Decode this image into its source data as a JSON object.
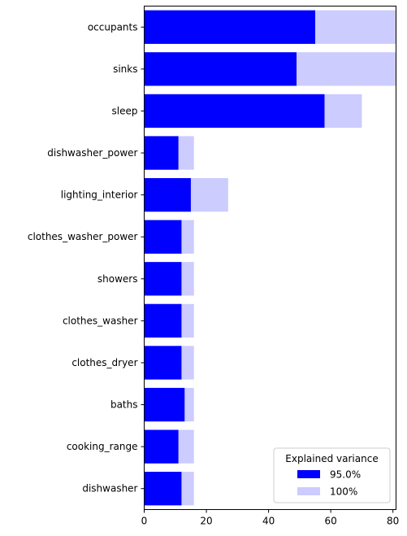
{
  "chart_data": {
    "type": "bar",
    "orientation": "horizontal",
    "categories": [
      "occupants",
      "sinks",
      "sleep",
      "dishwasher_power",
      "lighting_interior",
      "clothes_washer_power",
      "showers",
      "clothes_washer",
      "clothes_dryer",
      "baths",
      "cooking_range",
      "dishwasher"
    ],
    "series": [
      {
        "name": "100%",
        "color": "#ccccff",
        "values": [
          81,
          81,
          70,
          16,
          27,
          16,
          16,
          16,
          16,
          16,
          16,
          16
        ]
      },
      {
        "name": "95.0%",
        "color": "#0000ff",
        "values": [
          55,
          49,
          58,
          11,
          15,
          12,
          12,
          12,
          12,
          13,
          11,
          12
        ]
      }
    ],
    "xlim": [
      0,
      81
    ],
    "xticks": [
      0,
      20,
      40,
      60,
      80
    ],
    "legend": {
      "title": "Explained variance",
      "placement": "lower-right",
      "entries": [
        "95.0%",
        "100%"
      ]
    },
    "grid": false
  }
}
